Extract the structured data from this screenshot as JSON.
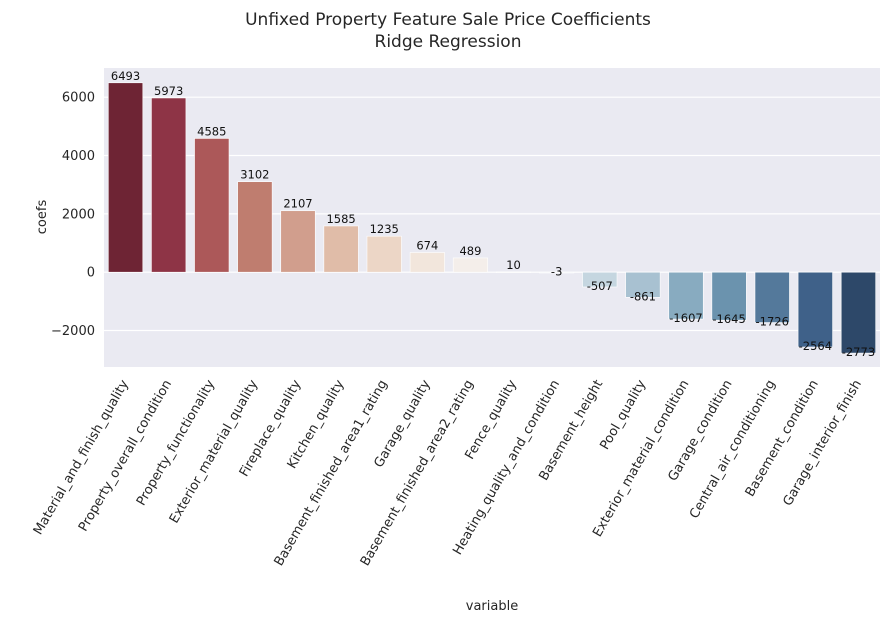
{
  "chart_data": {
    "type": "bar",
    "title": "Unfixed Property Feature Sale Price Coefficients",
    "subtitle": "Ridge Regression",
    "xlabel": "variable",
    "ylabel": "coefs",
    "ylim": [
      -3250,
      7000
    ],
    "yticks": [
      -2000,
      0,
      2000,
      4000,
      6000
    ],
    "grid": true,
    "categories": [
      "Material_and_finish_quality",
      "Property_overall_condition",
      "Property_functionality",
      "Exterior_material_quality",
      "Fireplace_quality",
      "Kitchen_quality",
      "Basement_finished_area1_rating",
      "Garage_quality",
      "Basement_finished_area2_rating",
      "Fence_quality",
      "Heating_quality_and_condition",
      "Basement_height",
      "Pool_quality",
      "Exterior_material_condition",
      "Garage_condition",
      "Central_air_conditioning",
      "Basement_condition",
      "Garage_interior_finish"
    ],
    "values": [
      6493,
      5973,
      4585,
      3102,
      2107,
      1585,
      1235,
      674,
      489,
      10,
      -3,
      -507,
      -861,
      -1607,
      -1645,
      -1726,
      -2564,
      -2773
    ],
    "data_labels": [
      "6493",
      "5973",
      "4585",
      "3102",
      "2107",
      "1585",
      "1235",
      "674",
      "489",
      "10",
      "-3",
      "-507",
      "-861",
      "-1607",
      "-1645",
      "-1726",
      "-2564",
      "-2773"
    ],
    "colors": [
      "#6e2434",
      "#8e3446",
      "#ac5859",
      "#bf7d6f",
      "#d19e8d",
      "#e0bca8",
      "#ecd6c6",
      "#f2e6dc",
      "#f4eeea",
      "#f1f1f2",
      "#e4e9ed",
      "#c5d6e0",
      "#a8c1d1",
      "#88abc0",
      "#6b93ae",
      "#54799b",
      "#3f6189",
      "#2d4869"
    ],
    "background_color": "#eaeaf2"
  }
}
